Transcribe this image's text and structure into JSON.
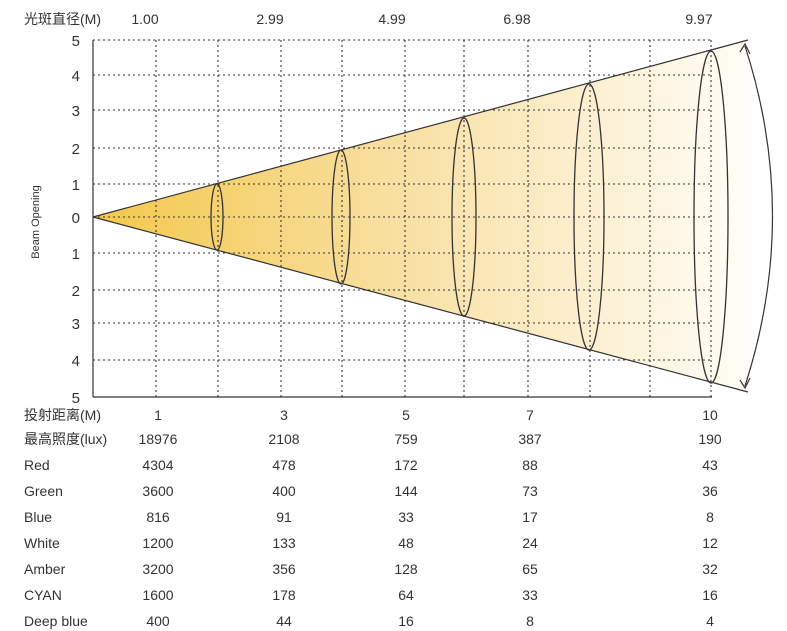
{
  "chart_data": {
    "type": "diagram",
    "top_axis": {
      "label": "光斑直径(M)",
      "ticks": [
        "1.00",
        "2.99",
        "4.99",
        "6.98",
        "9.97"
      ]
    },
    "y_axis": {
      "label": "Beam Opening",
      "ticks": [
        "5",
        "4",
        "3",
        "2",
        "1",
        "0",
        "1",
        "2",
        "3",
        "4",
        "5"
      ]
    },
    "x_axis_label": "投射距离(M)",
    "distances": [
      "1",
      "3",
      "5",
      "7",
      "10"
    ],
    "beam_diameters": [
      1.0,
      2.99,
      4.99,
      6.98,
      9.97
    ],
    "accent_color": "#f3c84b",
    "table": {
      "rows": [
        {
          "label": "最高照度(lux)",
          "values": [
            "18976",
            "2108",
            "759",
            "387",
            "190"
          ]
        },
        {
          "label": "Red",
          "values": [
            "4304",
            "478",
            "172",
            "88",
            "43"
          ]
        },
        {
          "label": "Green",
          "values": [
            "3600",
            "400",
            "144",
            "73",
            "36"
          ]
        },
        {
          "label": "Blue",
          "values": [
            "816",
            "91",
            "33",
            "17",
            "8"
          ]
        },
        {
          "label": "White",
          "values": [
            "1200",
            "133",
            "48",
            "24",
            "12"
          ]
        },
        {
          "label": "Amber",
          "values": [
            "3200",
            "356",
            "128",
            "65",
            "32"
          ]
        },
        {
          "label": "CYAN",
          "values": [
            "1600",
            "178",
            "64",
            "33",
            "16"
          ]
        },
        {
          "label": "Deep blue",
          "values": [
            "400",
            "44",
            "16",
            "8",
            "4"
          ]
        }
      ]
    }
  }
}
